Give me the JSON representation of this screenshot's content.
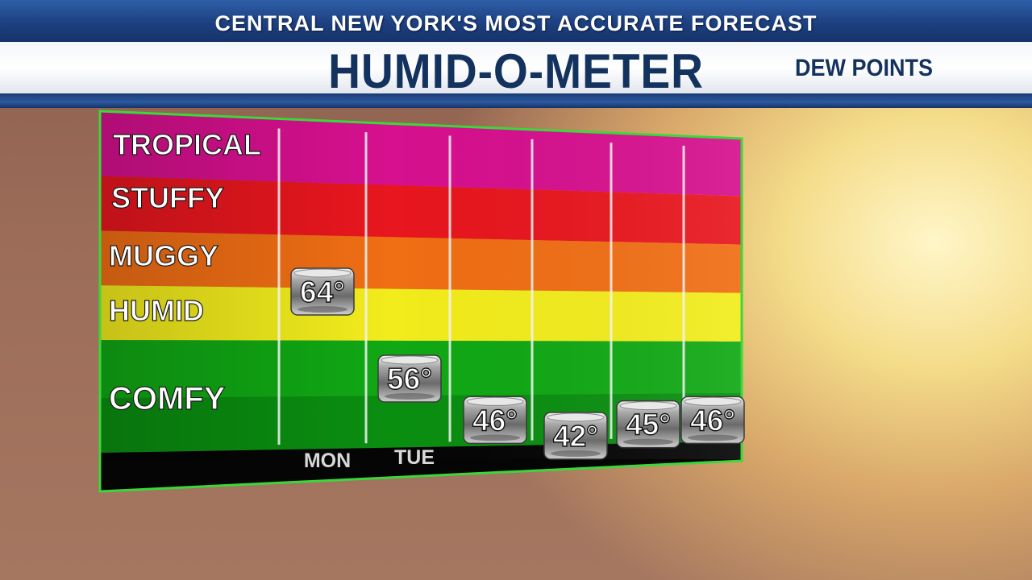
{
  "header": {
    "tagline": "CENTRAL NEW YORK'S MOST ACCURATE FORECAST",
    "title": "HUMID-O-METER",
    "subtitle": "DEW POINTS"
  },
  "colors": {
    "tropical": "#d6108e",
    "stuffy": "#e8161e",
    "muggy": "#f06e14",
    "humid": "#f2ec1c",
    "comfy": "#10a814",
    "frame": "#3ad83a"
  },
  "chart_data": {
    "type": "bar",
    "categories": [
      "MON",
      "TUE",
      "",
      "",
      "",
      ""
    ],
    "values": [
      64,
      56,
      46,
      42,
      45,
      46
    ],
    "value_labels": [
      "64°",
      "56°",
      "46°",
      "42°",
      "45°",
      "46°"
    ],
    "bands": [
      {
        "label": "TROPICAL",
        "color": "#d6108e"
      },
      {
        "label": "STUFFY",
        "color": "#e8161e"
      },
      {
        "label": "MUGGY",
        "color": "#f06e14"
      },
      {
        "label": "HUMID",
        "color": "#f2ec1c"
      },
      {
        "label": "COMFY",
        "color": "#10a814"
      }
    ]
  }
}
